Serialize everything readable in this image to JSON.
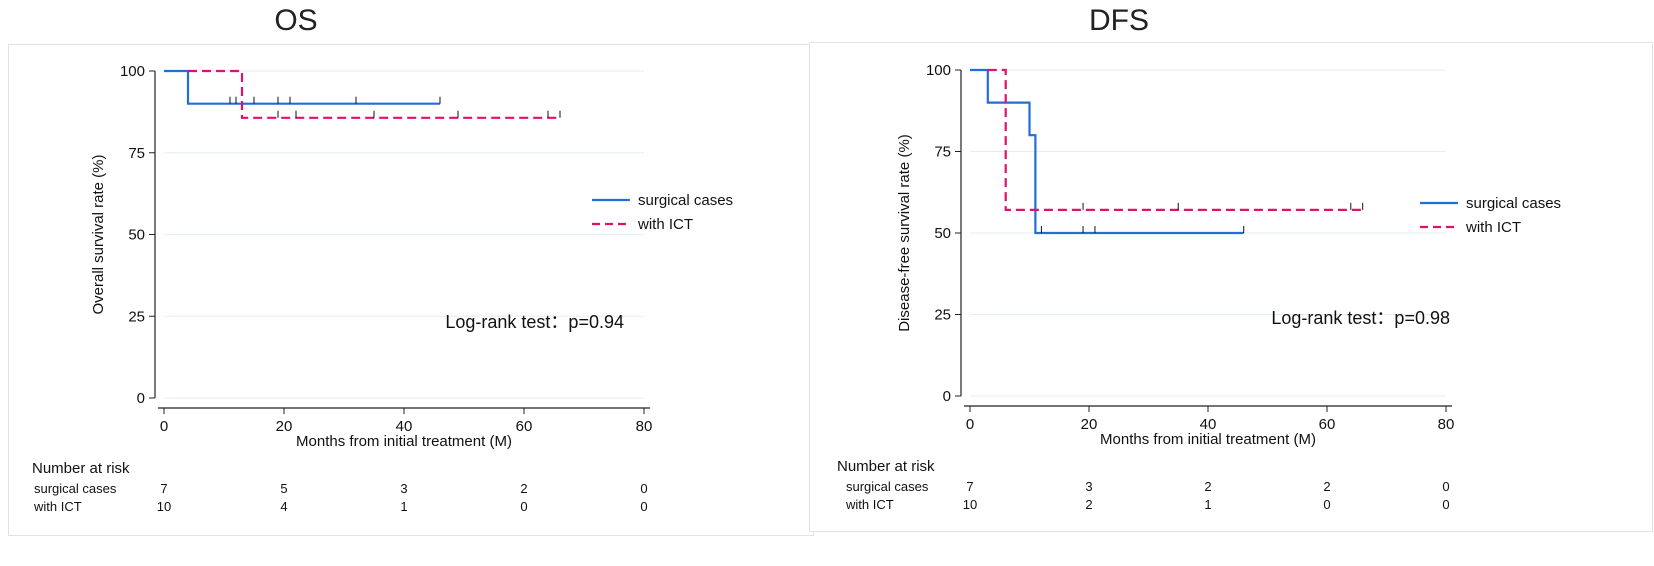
{
  "chart_data": [
    {
      "type": "line",
      "title": "OS",
      "xlabel": "Months from initial treatment (M)",
      "ylabel": "Overall survival rate (%)",
      "xlim": [
        0,
        80
      ],
      "ylim": [
        0,
        100
      ],
      "xticks": [
        "0",
        "20",
        "40",
        "60",
        "80"
      ],
      "yticks": [
        "0",
        "25",
        "50",
        "75",
        "100"
      ],
      "grid": true,
      "legend_position": "right",
      "series": [
        {
          "name": "surgical cases",
          "color": "#1f6fd6",
          "style": "solid",
          "steps": [
            [
              0,
              100
            ],
            [
              4,
              100
            ],
            [
              4,
              90
            ],
            [
              46,
              90
            ]
          ],
          "censored": [
            11,
            12,
            15,
            19,
            21,
            32,
            46
          ]
        },
        {
          "name": "with ICT",
          "color": "#e0116b",
          "style": "dashed",
          "steps": [
            [
              4,
              100
            ],
            [
              13,
              100
            ],
            [
              13,
              85.7
            ],
            [
              66,
              85.7
            ]
          ],
          "censored": [
            19,
            22,
            35,
            49,
            64,
            66
          ]
        }
      ],
      "annotation": "Log-rank test：p=0.94",
      "risk_table": {
        "title": "Number at risk",
        "times": [
          0,
          20,
          40,
          60,
          80
        ],
        "rows": [
          {
            "label": "surgical cases",
            "values": [
              "7",
              "5",
              "3",
              "2",
              "0"
            ]
          },
          {
            "label": "with ICT",
            "values": [
              "10",
              "4",
              "1",
              "0",
              "0"
            ]
          }
        ]
      }
    },
    {
      "type": "line",
      "title": "DFS",
      "xlabel": "Months from initial treatment (M)",
      "ylabel": "Disease-free survival rate (%)",
      "xlim": [
        0,
        80
      ],
      "ylim": [
        0,
        100
      ],
      "xticks": [
        "0",
        "20",
        "40",
        "60",
        "80"
      ],
      "yticks": [
        "0",
        "25",
        "50",
        "75",
        "100"
      ],
      "grid": true,
      "legend_position": "right",
      "series": [
        {
          "name": "surgical cases",
          "color": "#1f6fd6",
          "style": "solid",
          "steps": [
            [
              0,
              100
            ],
            [
              3,
              100
            ],
            [
              3,
              90
            ],
            [
              10,
              90
            ],
            [
              10,
              80
            ],
            [
              11,
              80
            ],
            [
              11,
              50
            ],
            [
              46,
              50
            ]
          ],
          "censored": [
            12,
            19,
            21,
            46
          ]
        },
        {
          "name": "with ICT",
          "color": "#e0116b",
          "style": "dashed",
          "steps": [
            [
              3,
              100
            ],
            [
              6,
              100
            ],
            [
              6,
              57.1
            ],
            [
              66,
              57.1
            ]
          ],
          "censored": [
            19,
            35,
            64,
            66
          ]
        }
      ],
      "annotation": "Log-rank test：p=0.98",
      "risk_table": {
        "title": "Number at risk",
        "times": [
          0,
          20,
          40,
          60,
          80
        ],
        "rows": [
          {
            "label": "surgical cases",
            "values": [
              "7",
              "3",
              "2",
              "2",
              "0"
            ]
          },
          {
            "label": "with ICT",
            "values": [
              "10",
              "2",
              "1",
              "0",
              "0"
            ]
          }
        ]
      }
    }
  ]
}
